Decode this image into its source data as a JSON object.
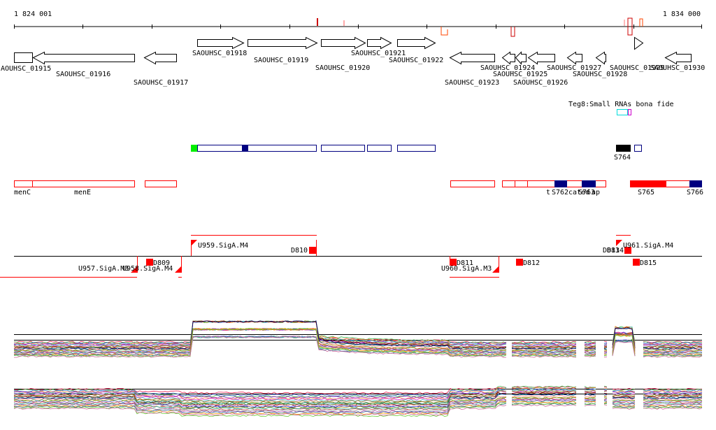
{
  "coords": {
    "start": "1 824 001",
    "end": "1 834 000"
  },
  "colors": {
    "axis": "#000000",
    "gene_outline": "#000000",
    "operon": "#ff0000",
    "utr_box": "#000080",
    "utr_fill": "#000080",
    "start_green": "#00ff00",
    "srna_black": "#000000",
    "srna_red": "#ff0000",
    "tss_red": "#ff0000",
    "teg_cyan": "#00ffff",
    "teg_magenta": "#cc00cc"
  },
  "genes": [
    {
      "label": "AOUHSC_01915",
      "strand": "+"
    },
    {
      "label": "SAOUHSC_01916",
      "strand": "-"
    },
    {
      "label": "SAOUHSC_01917",
      "strand": "-"
    },
    {
      "label": "SAOUHSC_01918",
      "strand": "+"
    },
    {
      "label": "SAOUHSC_01919",
      "strand": "+"
    },
    {
      "label": "SAOUHSC_01920",
      "strand": "+"
    },
    {
      "label": "SAOUHSC_01921",
      "strand": "+"
    },
    {
      "label": "SAOUHSC_01922",
      "strand": "+"
    },
    {
      "label": "SAOUHSC_01923",
      "strand": "-"
    },
    {
      "label": "SAOUHSC_01924",
      "strand": "-"
    },
    {
      "label": "SAOUHSC_01925",
      "strand": "-"
    },
    {
      "label": "SAOUHSC_01926",
      "strand": "-"
    },
    {
      "label": "SAOUHSC_01927",
      "strand": "-"
    },
    {
      "label": "SAOUHSC_01928",
      "strand": "-"
    },
    {
      "label": "SAOUHSC_01929",
      "strand": "+"
    },
    {
      "label": "SAOUHSC_01930",
      "strand": "-"
    }
  ],
  "srna_track": {
    "title": "Teg8:Small RNAs bona fide",
    "s764": "S764"
  },
  "operon_labels": [
    "menC",
    "menE",
    "t",
    "S762",
    "cated",
    "S763",
    "ap",
    "S765",
    "S766"
  ],
  "promoters": {
    "up": [
      "U959.SigA.M4",
      "U961.SigA.M4"
    ],
    "down": [
      "U957.SigA.M3",
      "U958.SigA.M4",
      "U960.SigA.M3"
    ]
  },
  "terminators": [
    "D809",
    "D810",
    "D811",
    "D812",
    "D813",
    "D814",
    "D815"
  ]
}
